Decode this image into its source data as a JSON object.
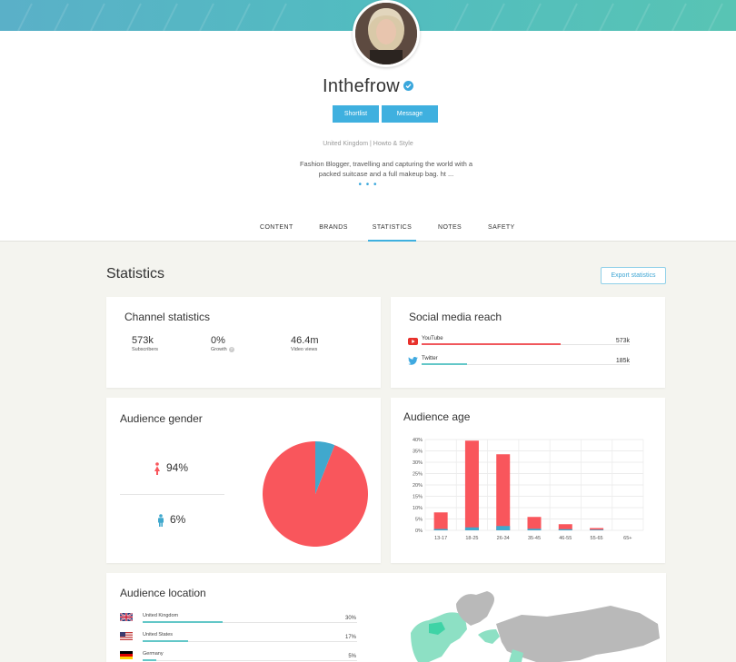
{
  "profile": {
    "name": "Inthefrow",
    "buttons": {
      "shortlist": "Shortlist",
      "message": "Message"
    },
    "meta": "United Kingdom | Howto & Style",
    "bio_line1": "Fashion Blogger, travelling and capturing the world with a",
    "bio_line2": "packed suitcase and a full makeup bag. ht ...",
    "more": "• • •"
  },
  "tabs": [
    "CONTENT",
    "BRANDS",
    "STATISTICS",
    "NOTES",
    "SAFETY"
  ],
  "active_tab": "STATISTICS",
  "statistics": {
    "title": "Statistics",
    "export_label": "Export statistics"
  },
  "channel": {
    "title": "Channel statistics",
    "stats": [
      {
        "value": "573k",
        "label": "Subscribers"
      },
      {
        "value": "0%",
        "label": "Growth"
      },
      {
        "value": "46.4m",
        "label": "Video views"
      }
    ],
    "help_glyph": "?"
  },
  "reach": {
    "title": "Social media reach",
    "items": [
      {
        "platform": "YouTube",
        "value": "573k",
        "fraction": 0.67,
        "color": "#f0575c",
        "icon": "youtube-icon"
      },
      {
        "platform": "Twitter",
        "value": "185k",
        "fraction": 0.22,
        "color": "#63c7c8",
        "icon": "twitter-icon"
      }
    ]
  },
  "gender": {
    "title": "Audience gender",
    "female_pct": "94%",
    "male_pct": "6%",
    "female_share": 94,
    "male_share": 6,
    "colors": {
      "female": "#f9565c",
      "male": "#40a8cd"
    }
  },
  "age": {
    "title": "Audience age"
  },
  "chart_data": {
    "type": "bar",
    "categories": [
      "13-17",
      "18-25",
      "26-34",
      "35-45",
      "46-55",
      "55-65",
      "65+"
    ],
    "series": [
      {
        "values": [
          7.9,
          39.5,
          33.5,
          5.9,
          2.7,
          1.0,
          0
        ]
      },
      {
        "values": [
          0.6,
          1.3,
          1.9,
          0.7,
          0.5,
          0.3,
          0
        ]
      }
    ],
    "y_ticks": [
      "0%",
      "5%",
      "10%",
      "15%",
      "20%",
      "25%",
      "30%",
      "35%",
      "40%"
    ],
    "ylim": [
      0,
      40
    ],
    "stacked": true,
    "grid": true,
    "colors": [
      "#f9565c",
      "#40a8cd"
    ]
  },
  "location": {
    "title": "Audience location",
    "rows": [
      {
        "country": "United Kingdom",
        "pct": "30%",
        "fraction": 0.3,
        "flag": "uk-flag-icon"
      },
      {
        "country": "United States",
        "pct": "17%",
        "fraction": 0.17,
        "flag": "us-flag-icon"
      },
      {
        "country": "Germany",
        "pct": "5%",
        "fraction": 0.05,
        "flag": "germany-flag-icon"
      }
    ]
  },
  "colors": {
    "accent": "#3fb0df",
    "banner": "#52bcc0",
    "map_highlight": "#8de0c4",
    "map_base": "#b9b9b9"
  }
}
